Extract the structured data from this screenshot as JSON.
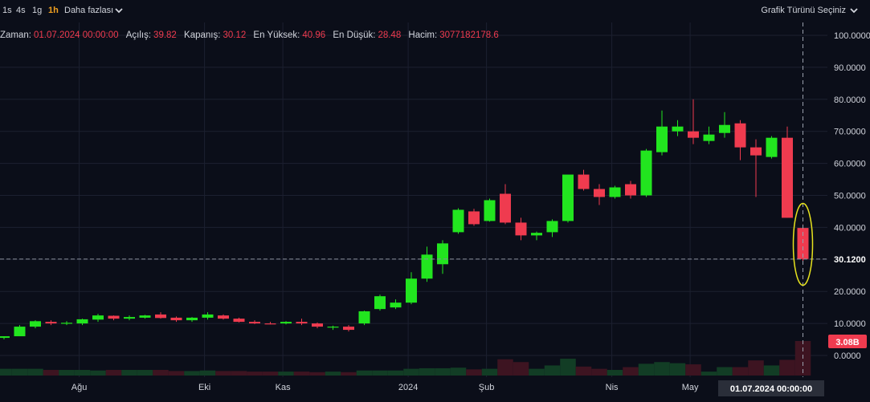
{
  "toolbar": {
    "timeframes": [
      "1s",
      "4s",
      "1g",
      "1h"
    ],
    "active_timeframe": "1h",
    "more_label": "Daha fazlası",
    "chart_type_label": "Grafik Türünü Seçiniz"
  },
  "legend": {
    "items": [
      {
        "label": "Zaman:",
        "value": "01.07.2024 00:00:00"
      },
      {
        "label": "Açılış:",
        "value": "39.82"
      },
      {
        "label": "Kapanış:",
        "value": "30.12"
      },
      {
        "label": "En Yüksek:",
        "value": "40.96"
      },
      {
        "label": "En Düşük:",
        "value": "28.48"
      },
      {
        "label": "Hacim:",
        "value": "3077182178.6"
      }
    ]
  },
  "chart_data": {
    "type": "candlestick",
    "y_ticks": [
      "100.0000",
      "90.0000",
      "80.0000",
      "70.0000",
      "60.0000",
      "50.0000",
      "40.0000",
      "30.0000",
      "20.0000",
      "10.0000",
      "0.0000"
    ],
    "ylim": [
      0,
      100
    ],
    "x_labels": [
      "Ağu",
      "Eki",
      "Kas",
      "2024",
      "Şub",
      "Nis",
      "May"
    ],
    "current_price_label": "30.1200",
    "current_price": 30.12,
    "current_volume_label": "3.08B",
    "crosshair_time_label": "01.07.2024 00:00:00",
    "grid": true,
    "up_color": "#22e51f",
    "down_color": "#ef3b4f",
    "highlight_color": "#e6e21e",
    "candles": [
      {
        "o": 5.5,
        "h": 6.0,
        "l": 5.0,
        "c": 6.0
      },
      {
        "o": 6.0,
        "h": 9.5,
        "l": 6.0,
        "c": 9.0
      },
      {
        "o": 9.0,
        "h": 11.0,
        "l": 8.5,
        "c": 10.7
      },
      {
        "o": 10.5,
        "h": 11.0,
        "l": 9.5,
        "c": 10.0
      },
      {
        "o": 10.0,
        "h": 10.7,
        "l": 9.5,
        "c": 10.2
      },
      {
        "o": 10.0,
        "h": 11.5,
        "l": 9.5,
        "c": 11.3
      },
      {
        "o": 11.2,
        "h": 13.0,
        "l": 10.5,
        "c": 12.5
      },
      {
        "o": 12.4,
        "h": 12.5,
        "l": 11.0,
        "c": 11.5
      },
      {
        "o": 11.5,
        "h": 12.5,
        "l": 11.0,
        "c": 12.0
      },
      {
        "o": 11.8,
        "h": 12.7,
        "l": 11.5,
        "c": 12.5
      },
      {
        "o": 12.8,
        "h": 13.5,
        "l": 11.5,
        "c": 11.7
      },
      {
        "o": 11.8,
        "h": 12.2,
        "l": 10.5,
        "c": 11.0
      },
      {
        "o": 11.0,
        "h": 12.0,
        "l": 10.5,
        "c": 11.8
      },
      {
        "o": 11.8,
        "h": 13.5,
        "l": 11.2,
        "c": 12.8
      },
      {
        "o": 12.5,
        "h": 12.8,
        "l": 11.2,
        "c": 11.5
      },
      {
        "o": 11.5,
        "h": 11.8,
        "l": 10.3,
        "c": 10.5
      },
      {
        "o": 10.5,
        "h": 11.0,
        "l": 9.8,
        "c": 10.0
      },
      {
        "o": 10.0,
        "h": 10.5,
        "l": 9.7,
        "c": 9.8
      },
      {
        "o": 10.0,
        "h": 10.7,
        "l": 9.7,
        "c": 10.5
      },
      {
        "o": 10.5,
        "h": 11.5,
        "l": 9.5,
        "c": 10.0
      },
      {
        "o": 10.0,
        "h": 10.3,
        "l": 8.5,
        "c": 9.0
      },
      {
        "o": 8.8,
        "h": 9.3,
        "l": 8.0,
        "c": 9.0
      },
      {
        "o": 9.0,
        "h": 9.5,
        "l": 7.5,
        "c": 8.0
      },
      {
        "o": 10.0,
        "h": 14.0,
        "l": 9.5,
        "c": 13.8
      },
      {
        "o": 14.5,
        "h": 19.0,
        "l": 14.0,
        "c": 18.5
      },
      {
        "o": 15.0,
        "h": 17.5,
        "l": 14.5,
        "c": 16.5
      },
      {
        "o": 16.5,
        "h": 26.0,
        "l": 16.0,
        "c": 24.0
      },
      {
        "o": 24.0,
        "h": 34.0,
        "l": 23.0,
        "c": 31.5
      },
      {
        "o": 28.5,
        "h": 36.0,
        "l": 25.5,
        "c": 35.0
      },
      {
        "o": 38.5,
        "h": 46.0,
        "l": 38.0,
        "c": 45.5
      },
      {
        "o": 45.0,
        "h": 45.8,
        "l": 40.5,
        "c": 41.0
      },
      {
        "o": 42.0,
        "h": 49.0,
        "l": 41.8,
        "c": 48.5
      },
      {
        "o": 50.5,
        "h": 53.5,
        "l": 41.0,
        "c": 41.5
      },
      {
        "o": 41.5,
        "h": 43.0,
        "l": 36.0,
        "c": 37.5
      },
      {
        "o": 37.5,
        "h": 38.7,
        "l": 36.0,
        "c": 38.3
      },
      {
        "o": 38.5,
        "h": 42.5,
        "l": 37.0,
        "c": 42.0
      },
      {
        "o": 42.0,
        "h": 56.0,
        "l": 41.5,
        "c": 56.5
      },
      {
        "o": 56.5,
        "h": 58.0,
        "l": 51.5,
        "c": 52.0
      },
      {
        "o": 52.0,
        "h": 53.5,
        "l": 47.0,
        "c": 49.5
      },
      {
        "o": 49.5,
        "h": 53.0,
        "l": 49.0,
        "c": 52.5
      },
      {
        "o": 53.5,
        "h": 54.5,
        "l": 49.0,
        "c": 50.0
      },
      {
        "o": 50.0,
        "h": 64.5,
        "l": 49.5,
        "c": 64.0
      },
      {
        "o": 63.5,
        "h": 76.5,
        "l": 62.5,
        "c": 71.5
      },
      {
        "o": 70.0,
        "h": 73.5,
        "l": 68.5,
        "c": 71.5
      },
      {
        "o": 70.0,
        "h": 80.0,
        "l": 66.0,
        "c": 68.0
      },
      {
        "o": 67.0,
        "h": 71.5,
        "l": 66.0,
        "c": 69.0
      },
      {
        "o": 69.5,
        "h": 76.0,
        "l": 68.0,
        "c": 72.0
      },
      {
        "o": 72.5,
        "h": 73.5,
        "l": 61.0,
        "c": 65.0
      },
      {
        "o": 65.0,
        "h": 67.5,
        "l": 49.5,
        "c": 62.5
      },
      {
        "o": 62.0,
        "h": 68.5,
        "l": 61.5,
        "c": 68.0
      },
      {
        "o": 68.0,
        "h": 71.5,
        "l": 43.0,
        "c": 43.0
      },
      {
        "o": 39.82,
        "h": 40.96,
        "l": 28.48,
        "c": 30.12
      }
    ],
    "volume_max": 3.08,
    "volumes": [
      0.6,
      0.6,
      0.6,
      0.5,
      0.5,
      0.5,
      0.45,
      0.5,
      0.5,
      0.5,
      0.5,
      0.4,
      0.4,
      0.45,
      0.4,
      0.4,
      0.35,
      0.35,
      0.35,
      0.35,
      0.3,
      0.35,
      0.3,
      0.45,
      0.45,
      0.45,
      0.6,
      0.65,
      0.65,
      0.7,
      0.55,
      0.6,
      1.45,
      1.2,
      0.6,
      0.9,
      1.5,
      0.8,
      0.6,
      0.5,
      0.75,
      1.05,
      1.2,
      1.1,
      1.0,
      0.35,
      0.75,
      0.75,
      1.35,
      0.9,
      1.4,
      3.08
    ]
  }
}
